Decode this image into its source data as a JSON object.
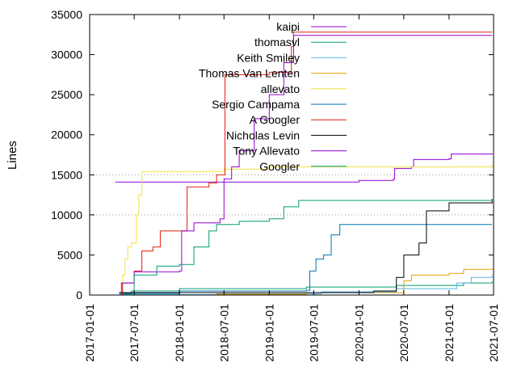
{
  "chart_data": {
    "type": "line",
    "ylabel": "Lines",
    "xlabel": "",
    "ylim": [
      0,
      35000
    ],
    "xlim": [
      "2017-01-01",
      "2021-07-01"
    ],
    "yticks": [
      0,
      5000,
      10000,
      15000,
      20000,
      25000,
      30000,
      35000
    ],
    "xticks": [
      "2017-01-01",
      "2017-07-01",
      "2018-01-01",
      "2018-07-01",
      "2019-01-01",
      "2019-07-01",
      "2020-01-01",
      "2020-07-01",
      "2021-01-01",
      "2021-07-01"
    ],
    "grid": "horizontal dotted at 15000 and 10000 only",
    "legend_placement": "top-right",
    "series": [
      {
        "name": "kaipi",
        "color": "#9400d3",
        "points": [
          [
            "2017-04-15",
            14100
          ],
          [
            "2019-01-01",
            14100
          ],
          [
            "2020-01-01",
            14300
          ],
          [
            "2020-05-20",
            14500
          ],
          [
            "2020-05-25",
            15800
          ],
          [
            "2020-08-01",
            16000
          ],
          [
            "2020-08-10",
            16900
          ],
          [
            "2021-01-01",
            17000
          ],
          [
            "2021-01-10",
            17600
          ],
          [
            "2021-06-25",
            17700
          ]
        ]
      },
      {
        "name": "thomasvl",
        "color": "#009e73",
        "points": [
          [
            "2017-05-15",
            100
          ],
          [
            "2017-06-20",
            500
          ],
          [
            "2018-01-01",
            800
          ],
          [
            "2019-06-01",
            1000
          ],
          [
            "2020-06-01",
            1200
          ],
          [
            "2021-03-01",
            1500
          ],
          [
            "2021-06-25",
            1700
          ]
        ]
      },
      {
        "name": "Keith Smiley",
        "color": "#56b4e9",
        "points": [
          [
            "2017-05-01",
            50
          ],
          [
            "2018-06-01",
            150
          ],
          [
            "2019-08-01",
            400
          ],
          [
            "2020-06-01",
            800
          ],
          [
            "2021-02-01",
            1500
          ],
          [
            "2021-04-01",
            2200
          ],
          [
            "2021-06-25",
            2500
          ]
        ]
      },
      {
        "name": "Thomas Van Lenten",
        "color": "#e69f00",
        "points": [
          [
            "2017-05-01",
            0
          ],
          [
            "2018-06-01",
            100
          ],
          [
            "2019-06-01",
            300
          ],
          [
            "2020-07-01",
            1800
          ],
          [
            "2020-08-01",
            2500
          ],
          [
            "2021-01-01",
            2700
          ],
          [
            "2021-03-01",
            3200
          ],
          [
            "2021-06-25",
            3300
          ]
        ]
      },
      {
        "name": "allevato",
        "color": "#f0e442",
        "points": [
          [
            "2017-05-01",
            0
          ],
          [
            "2017-05-15",
            2500
          ],
          [
            "2017-05-25",
            4500
          ],
          [
            "2017-06-05",
            6000
          ],
          [
            "2017-06-20",
            6500
          ],
          [
            "2017-07-10",
            10000
          ],
          [
            "2017-07-20",
            12500
          ],
          [
            "2017-08-01",
            15400
          ],
          [
            "2018-07-01",
            15700
          ],
          [
            "2019-01-01",
            16000
          ],
          [
            "2021-06-25",
            16300
          ]
        ]
      },
      {
        "name": "Sergio Campama",
        "color": "#0072b2",
        "points": [
          [
            "2017-05-01",
            200
          ],
          [
            "2018-01-01",
            500
          ],
          [
            "2019-06-01",
            600
          ],
          [
            "2019-06-15",
            3000
          ],
          [
            "2019-07-10",
            4500
          ],
          [
            "2019-08-10",
            5000
          ],
          [
            "2019-09-10",
            7500
          ],
          [
            "2019-10-15",
            8800
          ],
          [
            "2021-06-25",
            8800
          ]
        ]
      },
      {
        "name": "A Googler",
        "color": "#e51e10",
        "points": [
          [
            "2017-04-15",
            0
          ],
          [
            "2017-05-15",
            1500
          ],
          [
            "2017-07-01",
            3000
          ],
          [
            "2017-08-01",
            5500
          ],
          [
            "2017-09-15",
            6000
          ],
          [
            "2017-10-15",
            8000
          ],
          [
            "2018-01-01",
            8000
          ],
          [
            "2018-02-01",
            13500
          ],
          [
            "2018-05-01",
            14000
          ],
          [
            "2018-06-01",
            15000
          ],
          [
            "2018-07-01",
            15000
          ],
          [
            "2018-07-05",
            27500
          ],
          [
            "2019-01-01",
            27800
          ],
          [
            "2019-04-01",
            31000
          ],
          [
            "2019-04-10",
            32800
          ],
          [
            "2021-06-25",
            32800
          ]
        ]
      },
      {
        "name": "Nicholas Levin",
        "color": "#000000",
        "points": [
          [
            "2017-05-01",
            300
          ],
          [
            "2020-03-01",
            500
          ],
          [
            "2020-06-01",
            2200
          ],
          [
            "2020-07-01",
            5000
          ],
          [
            "2020-09-01",
            6500
          ],
          [
            "2020-10-01",
            10500
          ],
          [
            "2021-01-01",
            11500
          ],
          [
            "2021-06-25",
            12000
          ]
        ]
      },
      {
        "name": "Tony Allevato",
        "color": "#9400d3",
        "points": [
          [
            "2017-05-01",
            0
          ],
          [
            "2017-05-10",
            1500
          ],
          [
            "2017-07-01",
            2900
          ],
          [
            "2018-01-01",
            3000
          ],
          [
            "2018-01-10",
            8000
          ],
          [
            "2018-03-01",
            9000
          ],
          [
            "2018-06-15",
            9500
          ],
          [
            "2018-07-01",
            14500
          ],
          [
            "2018-08-01",
            16000
          ],
          [
            "2018-09-01",
            18000
          ],
          [
            "2018-11-01",
            22000
          ],
          [
            "2019-01-01",
            25000
          ],
          [
            "2019-03-01",
            29000
          ],
          [
            "2019-04-10",
            32400
          ],
          [
            "2021-06-25",
            32400
          ]
        ]
      },
      {
        "name": "Googler",
        "color": "#009e73",
        "points": [
          [
            "2017-05-01",
            0
          ],
          [
            "2017-07-01",
            2500
          ],
          [
            "2017-10-01",
            3600
          ],
          [
            "2018-01-01",
            3800
          ],
          [
            "2018-03-01",
            6000
          ],
          [
            "2018-05-01",
            8000
          ],
          [
            "2018-06-01",
            8800
          ],
          [
            "2018-09-01",
            9200
          ],
          [
            "2019-01-01",
            9500
          ],
          [
            "2019-03-01",
            11000
          ],
          [
            "2019-05-01",
            11800
          ],
          [
            "2021-06-25",
            11900
          ]
        ]
      }
    ]
  }
}
